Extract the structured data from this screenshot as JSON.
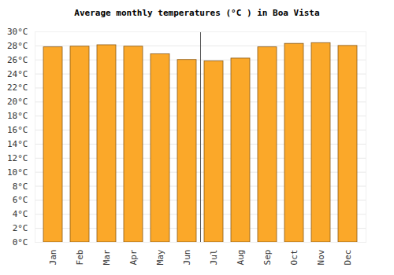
{
  "chart_data": {
    "type": "bar",
    "title": "Average monthly temperatures (°C ) in Boa Vista",
    "categories": [
      "Jan",
      "Feb",
      "Mar",
      "Apr",
      "May",
      "Jun",
      "Jul",
      "Aug",
      "Sep",
      "Oct",
      "Nov",
      "Dec"
    ],
    "values": [
      27.8,
      27.9,
      28.1,
      27.9,
      26.8,
      26.0,
      25.8,
      26.2,
      27.8,
      28.3,
      28.4,
      28.0
    ],
    "color": "#fba829",
    "ylim": [
      0,
      30
    ],
    "yticks": [
      {
        "value": 0,
        "label": "0°C"
      },
      {
        "value": 2,
        "label": "2°C"
      },
      {
        "value": 4,
        "label": "4°C"
      },
      {
        "value": 6,
        "label": "6°C"
      },
      {
        "value": 8,
        "label": "8°C"
      },
      {
        "value": 10,
        "label": "10°C"
      },
      {
        "value": 12,
        "label": "12°C"
      },
      {
        "value": 14,
        "label": "14°C"
      },
      {
        "value": 16,
        "label": "16°C"
      },
      {
        "value": 18,
        "label": "18°C"
      },
      {
        "value": 20,
        "label": "20°C"
      },
      {
        "value": 22,
        "label": "22°C"
      },
      {
        "value": 24,
        "label": "24°C"
      },
      {
        "value": 26,
        "label": "26°C"
      },
      {
        "value": 28,
        "label": "28°C"
      },
      {
        "value": 30,
        "label": "30°C"
      }
    ],
    "grid": true
  }
}
